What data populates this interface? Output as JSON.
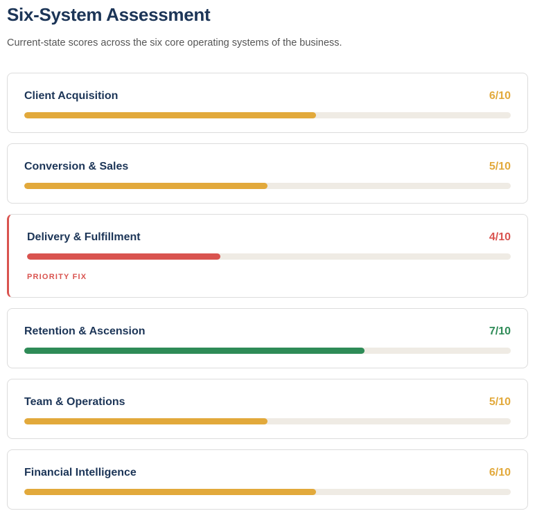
{
  "header": {
    "title": "Six-System Assessment",
    "subtitle": "Current-state scores across the six core operating systems of the business."
  },
  "colors": {
    "amber": "#e2a93b",
    "red": "#d9534f",
    "green": "#2e8b57",
    "track": "#efebe4",
    "navy": "#1c3557"
  },
  "systems": [
    {
      "label": "Client Acquisition",
      "score_text": "6/10",
      "score": 6,
      "max": 10,
      "status": "amber",
      "flag": ""
    },
    {
      "label": "Conversion & Sales",
      "score_text": "5/10",
      "score": 5,
      "max": 10,
      "status": "amber",
      "flag": ""
    },
    {
      "label": "Delivery & Fulfillment",
      "score_text": "4/10",
      "score": 4,
      "max": 10,
      "status": "red",
      "flag": "PRIORITY FIX"
    },
    {
      "label": "Retention & Ascension",
      "score_text": "7/10",
      "score": 7,
      "max": 10,
      "status": "green",
      "flag": ""
    },
    {
      "label": "Team & Operations",
      "score_text": "5/10",
      "score": 5,
      "max": 10,
      "status": "amber",
      "flag": ""
    },
    {
      "label": "Financial Intelligence",
      "score_text": "6/10",
      "score": 6,
      "max": 10,
      "status": "amber",
      "flag": ""
    }
  ]
}
